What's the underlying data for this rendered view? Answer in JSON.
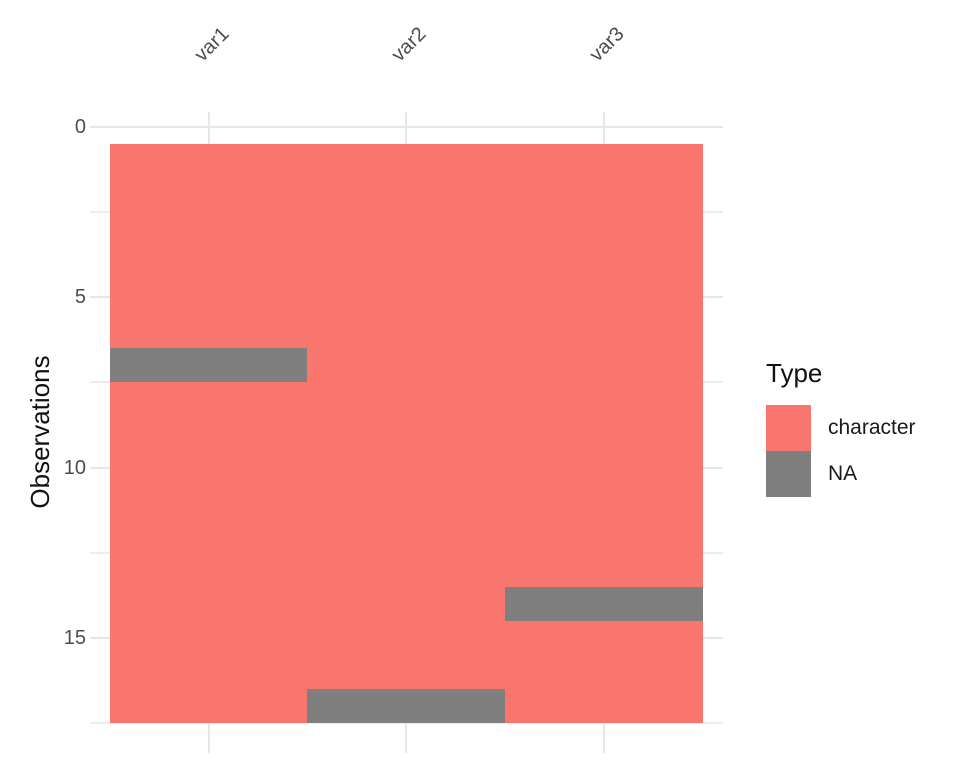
{
  "chart_data": {
    "type": "heatmap",
    "title": "",
    "ylabel": "Observations",
    "xlabel": "",
    "x_axis_position": "top",
    "columns": [
      "var1",
      "var2",
      "var3"
    ],
    "n_observations": 17,
    "y_ticks": [
      0,
      5,
      10,
      15
    ],
    "y_minor_ticks": [
      2.5,
      7.5,
      12.5,
      17.5
    ],
    "y_cell_range": [
      0.5,
      17.5
    ],
    "cell_default_type": "character",
    "na_cells": [
      {
        "column": "var1",
        "observation": 7
      },
      {
        "column": "var2",
        "observation": 17
      },
      {
        "column": "var3",
        "observation": 14
      }
    ],
    "legend": {
      "title": "Type",
      "position": "right",
      "items": [
        {
          "label": "character",
          "color": "#F8766D"
        },
        {
          "label": "NA",
          "color": "#7F7F7F"
        }
      ]
    },
    "colors": {
      "character": "#F8766D",
      "na": "#7F7F7F",
      "grid_major": "#E7E7E7",
      "grid_minor": "#EDEDED",
      "axis_text": "#4D4D4D",
      "axis_title": "#111111",
      "background": "#FFFFFF"
    },
    "layout_hints": {
      "grid": true,
      "legend_position": "right",
      "y_axis_reversed": true
    }
  }
}
